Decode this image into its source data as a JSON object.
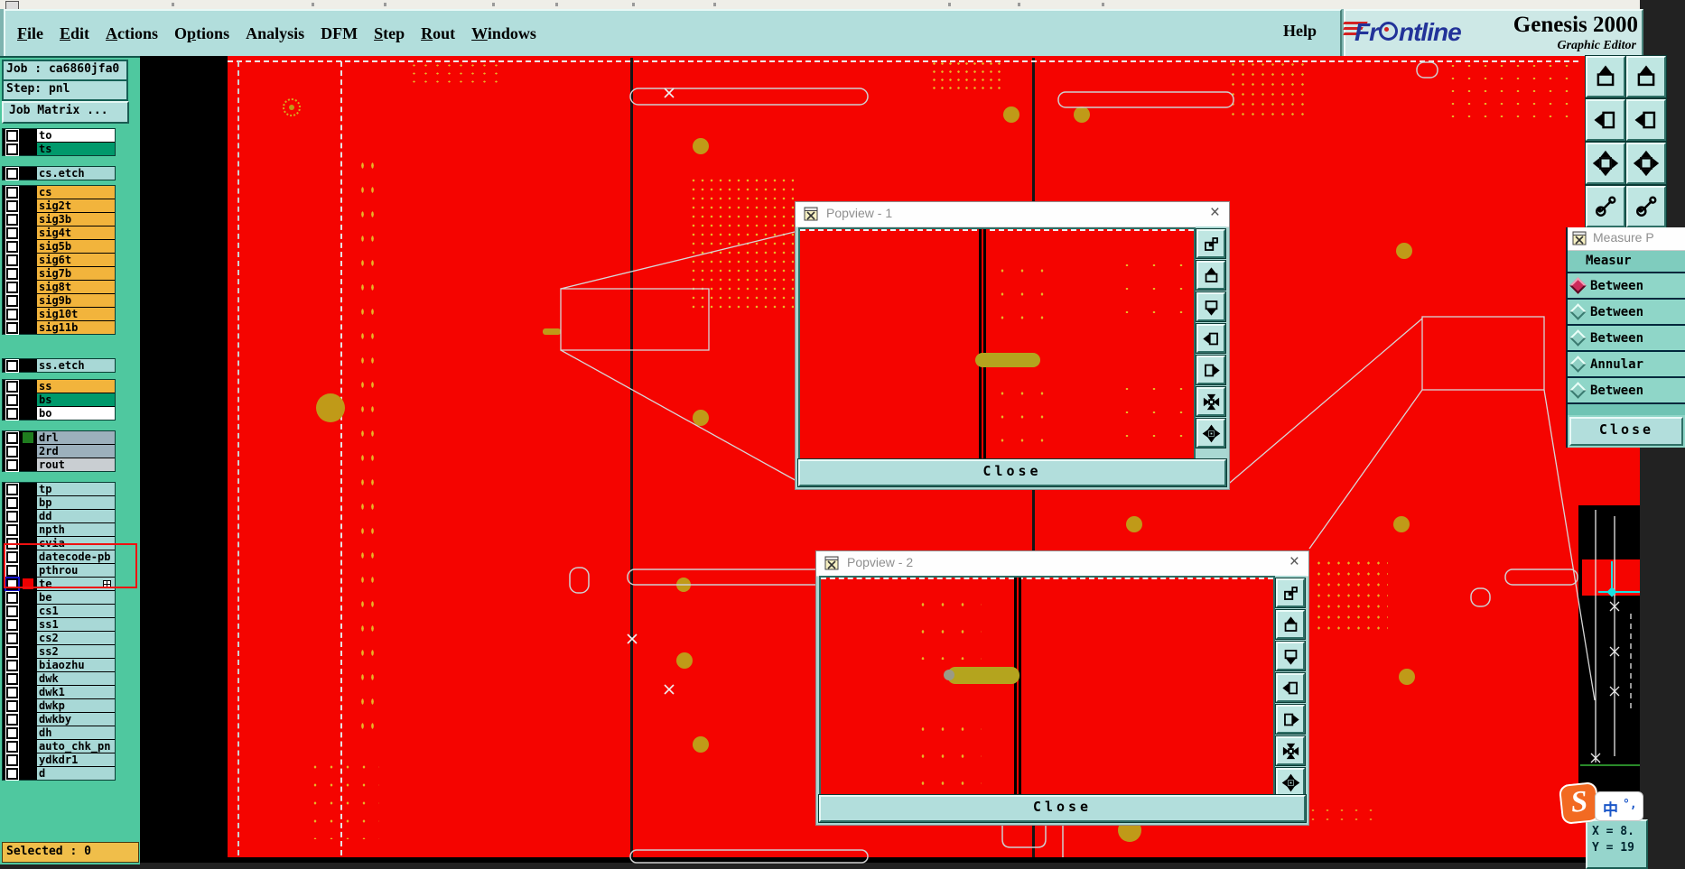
{
  "menu": {
    "items": [
      {
        "label": "File",
        "u": 0
      },
      {
        "label": "Edit",
        "u": 0
      },
      {
        "label": "Actions",
        "u": 0
      },
      {
        "label": "Options",
        "u": 1
      },
      {
        "label": "Analysis"
      },
      {
        "label": "DFM"
      },
      {
        "label": "Step",
        "u": 0
      },
      {
        "label": "Rout",
        "u": 0
      },
      {
        "label": "Windows",
        "u": 0
      }
    ],
    "help_label": "Help"
  },
  "logo": {
    "brand_prefix": "Fr",
    "brand_suffix": "ntline",
    "product": "Genesis 2000",
    "subtitle": "Graphic Editor"
  },
  "sidebar": {
    "job_label": "Job : ca6860jfa0",
    "step_label": "Step: pnl",
    "job_matrix_label": "Job Matrix ...",
    "selected_label": "Selected : 0",
    "layer_groups": [
      {
        "gap": 0,
        "rows": [
          {
            "name": "to",
            "bg": "white"
          },
          {
            "name": "ts",
            "bg": "green"
          }
        ]
      },
      {
        "gap": 11,
        "rows": [
          {
            "name": "cs.etch",
            "bg": "cyan"
          }
        ]
      },
      {
        "gap": 5,
        "rows": [
          {
            "name": "cs",
            "bg": "orange"
          },
          {
            "name": "sig2t",
            "bg": "orange"
          },
          {
            "name": "sig3b",
            "bg": "orange"
          },
          {
            "name": "sig4t",
            "bg": "orange"
          },
          {
            "name": "sig5b",
            "bg": "orange"
          },
          {
            "name": "sig6t",
            "bg": "orange"
          },
          {
            "name": "sig7b",
            "bg": "orange"
          },
          {
            "name": "sig8t",
            "bg": "orange"
          },
          {
            "name": "sig9b",
            "bg": "orange"
          },
          {
            "name": "sig10t",
            "bg": "orange"
          },
          {
            "name": "sig11b",
            "bg": "orange"
          }
        ]
      },
      {
        "gap": 26,
        "rows": [
          {
            "name": "ss.etch",
            "bg": "cyan"
          }
        ]
      },
      {
        "gap": 7,
        "rows": [
          {
            "name": "ss",
            "bg": "orange"
          },
          {
            "name": "bs",
            "bg": "green"
          },
          {
            "name": "bo",
            "bg": "white"
          }
        ]
      },
      {
        "gap": 11,
        "rows": [
          {
            "name": "drl",
            "bg": "gray",
            "chip": "#1f7d1f"
          },
          {
            "name": "2rd",
            "bg": "gray"
          },
          {
            "name": "rout",
            "bg": "graylight"
          }
        ]
      },
      {
        "gap": 11,
        "rows": [
          {
            "name": "tp",
            "bg": "cyan"
          },
          {
            "name": "bp",
            "bg": "cyan"
          },
          {
            "name": "dd",
            "bg": "cyan"
          },
          {
            "name": "npth",
            "bg": "cyan"
          },
          {
            "name": "cvia",
            "bg": "cyan"
          },
          {
            "name": "datecode-pb",
            "bg": "cyan"
          },
          {
            "name": "pthrou",
            "bg": "cyan"
          },
          {
            "name": "te",
            "bg": "cyan",
            "chip": "#ee0000",
            "selected": true,
            "grid_icon": true
          },
          {
            "name": "be",
            "bg": "cyan"
          },
          {
            "name": "cs1",
            "bg": "cyan"
          },
          {
            "name": "ss1",
            "bg": "cyan"
          },
          {
            "name": "cs2",
            "bg": "cyan"
          },
          {
            "name": "ss2",
            "bg": "cyan"
          },
          {
            "name": "biaozhu",
            "bg": "cyan"
          },
          {
            "name": "dwk",
            "bg": "cyan"
          },
          {
            "name": "dwk1",
            "bg": "cyan"
          },
          {
            "name": "dwkp",
            "bg": "cyan"
          },
          {
            "name": "dwkby",
            "bg": "cyan"
          },
          {
            "name": "dh",
            "bg": "cyan"
          },
          {
            "name": "auto_chk_pn",
            "bg": "cyan"
          },
          {
            "name": "ydkdr1",
            "bg": "cyan"
          },
          {
            "name": "d",
            "bg": "cyan"
          }
        ]
      }
    ]
  },
  "popviews": [
    {
      "title": "Popview - 1",
      "close_label": "Close",
      "close_icon": "×",
      "toolbar_icons": [
        "window-popout-icon",
        "pan-up-icon",
        "pan-down-icon",
        "pan-left-icon",
        "pan-right-icon",
        "arrows-in-icon",
        "arrows-out-icon"
      ]
    },
    {
      "title": "Popview - 2",
      "close_label": "Close",
      "close_icon": "×",
      "toolbar_icons": [
        "window-popout-icon",
        "pan-up-icon",
        "pan-down-icon",
        "pan-left-icon",
        "pan-right-icon",
        "arrows-in-icon",
        "arrows-out-icon"
      ]
    }
  ],
  "right_toolbar": {
    "icons": [
      "pan-up-icon",
      "pan-left-icon",
      "expand-icon",
      "tools-icon"
    ]
  },
  "measure_panel": {
    "title": "Measure P",
    "header": "Measur",
    "options": [
      {
        "label": "Between",
        "selected": true
      },
      {
        "label": "Between",
        "selected": false
      },
      {
        "label": "Between",
        "selected": false
      },
      {
        "label": "Annular",
        "selected": false
      },
      {
        "label": "Between",
        "selected": false
      }
    ],
    "close_label": "Close"
  },
  "status": {
    "x_label": "X = 8.",
    "y_label": "Y = 19"
  },
  "ime": {
    "badge": "S",
    "lang_label": "中",
    "symbols": "°,"
  },
  "colors": {
    "canvas_red": "#f50400",
    "pad_olive": "#c09a18",
    "dot_yellow": "#e8b428",
    "chrome_teal": "#b2dedc",
    "sidebar_green": "#4fc89f",
    "selected_bar": "#f0be4a",
    "layer_orange": "#f2b43c",
    "layer_green": "#00996b",
    "layer_cyan": "#a8d8d6",
    "layer_gray": "#9cb0bc",
    "annotation_red": "#ee1111",
    "measure_selected": "#cc2a5a",
    "ime_orange": "#f26a22",
    "frontline_blue": "#223399",
    "measure_cyan_line": "#19e0e0"
  }
}
